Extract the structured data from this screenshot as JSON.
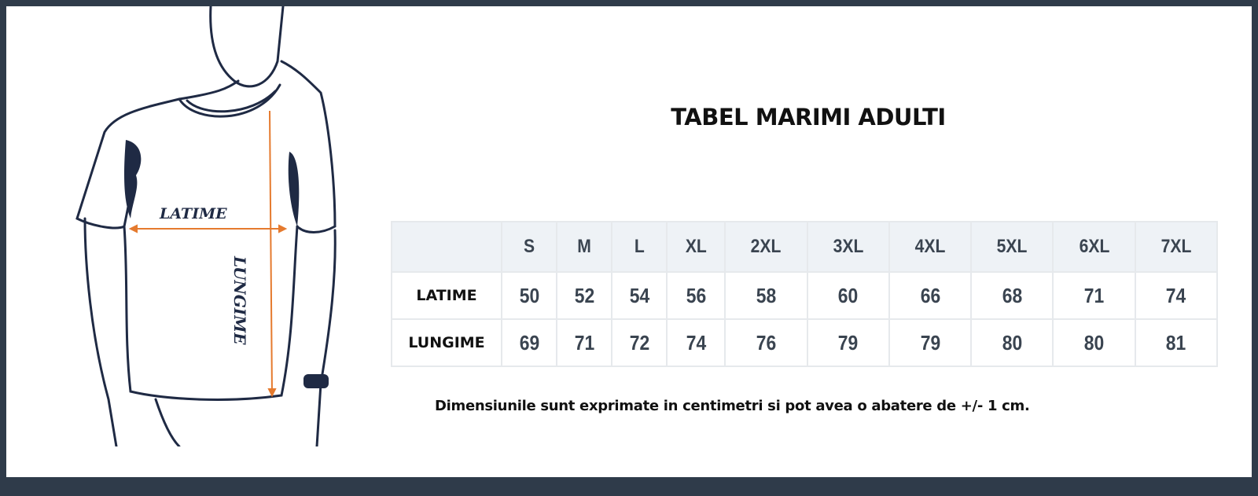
{
  "illustration": {
    "width_label": "LATIME",
    "length_label": "LUNGIME",
    "arrow_color": "#e57a2e",
    "ink_color": "#1f2a44"
  },
  "title": "TABEL MARIMI ADULTI",
  "table": {
    "sizes": [
      "S",
      "M",
      "L",
      "XL",
      "2XL",
      "3XL",
      "4XL",
      "5XL",
      "6XL",
      "7XL"
    ],
    "rows": [
      {
        "label": "LATIME",
        "values": [
          "50",
          "52",
          "54",
          "56",
          "58",
          "60",
          "66",
          "68",
          "71",
          "74"
        ]
      },
      {
        "label": "LUNGIME",
        "values": [
          "69",
          "71",
          "72",
          "74",
          "76",
          "79",
          "79",
          "80",
          "80",
          "81"
        ]
      }
    ]
  },
  "note": "Dimensiunile sunt exprimate in centimetri si pot avea o abatere de +/- 1 cm."
}
